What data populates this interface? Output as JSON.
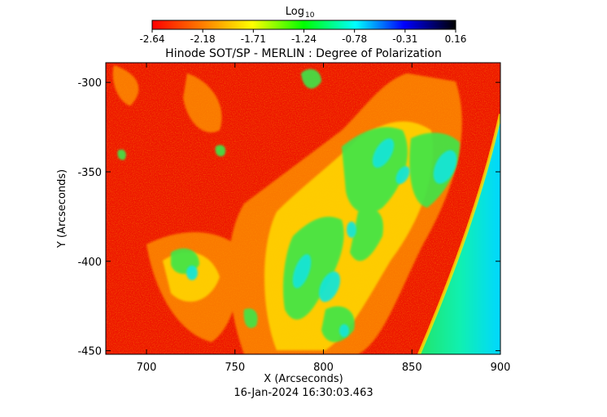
{
  "colorbar": {
    "title_main": "Log",
    "title_sub": "10",
    "ticks": [
      "-2.64",
      "-2.18",
      "-1.71",
      "-1.24",
      "-0.78",
      "-0.31",
      "0.16"
    ],
    "colors": [
      "#ff0000",
      "#ff8000",
      "#ffff00",
      "#00ff00",
      "#00ffff",
      "#0000ff",
      "#000000"
    ]
  },
  "plot": {
    "title": "Hinode SOT/SP - MERLIN : Degree of Polarization",
    "xlabel": "X (Arcseconds)",
    "ylabel": "Y (Arcseconds)",
    "xrange": [
      677,
      900
    ],
    "yrange": [
      -452,
      -289
    ],
    "xticks": [
      "700",
      "750",
      "800",
      "850",
      "900"
    ],
    "xtick_values": [
      700,
      750,
      800,
      850,
      900
    ],
    "yticks": [
      "-300",
      "-350",
      "-400",
      "-450"
    ],
    "ytick_values": [
      -300,
      -350,
      -400,
      -450
    ]
  },
  "timestamp": "16-Jan-2024 16:30:03.463"
}
